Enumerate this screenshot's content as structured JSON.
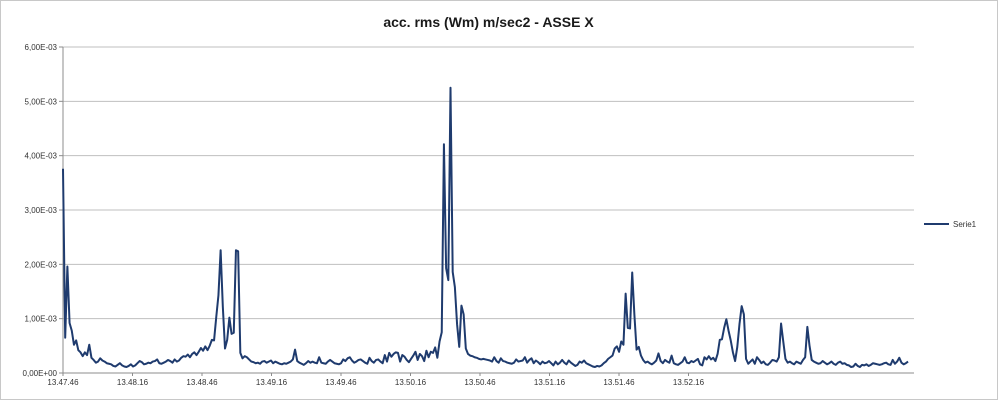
{
  "chart_data": {
    "type": "line",
    "title": "acc. rms (Wm) m/sec2 - ASSE X",
    "xlabel": "",
    "ylabel": "",
    "x_start": "13.47.46",
    "x_end": "13.53.05",
    "x_tick_labels": [
      "13.47.46",
      "13.48.16",
      "13.48.46",
      "13.49.16",
      "13.49.46",
      "13.50.16",
      "13.50.46",
      "13.51.16",
      "13.51.46",
      "13.52.16"
    ],
    "y_tick_labels": [
      "0,00E+00",
      "1,00E-03",
      "2,00E-03",
      "3,00E-03",
      "4,00E-03",
      "5,00E-03",
      "6,00E-03"
    ],
    "ylim": [
      0,
      0.006
    ],
    "grid": true,
    "legend": "right",
    "series": [
      {
        "name": "Serie1",
        "color": "#1f3b6e",
        "values": [
          0.00376,
          0.00065,
          0.00196,
          0.00092,
          0.00078,
          0.00052,
          0.0006,
          0.00042,
          0.00038,
          0.00031,
          0.00038,
          0.00033,
          0.00052,
          0.00028,
          0.00024,
          0.00019,
          0.00021,
          0.00027,
          0.00023,
          0.00021,
          0.00018,
          0.00017,
          0.00016,
          0.00013,
          0.00012,
          0.00015,
          0.00018,
          0.00014,
          0.00012,
          0.00011,
          0.00013,
          0.00016,
          0.00012,
          0.00014,
          0.00018,
          0.00022,
          0.0002,
          0.00016,
          0.00017,
          0.00019,
          0.00018,
          0.00021,
          0.00022,
          0.00025,
          0.00018,
          0.00017,
          0.00019,
          0.00021,
          0.00024,
          0.00022,
          0.00019,
          0.00025,
          0.00021,
          0.00023,
          0.00028,
          0.00031,
          0.0003,
          0.00034,
          0.00029,
          0.00035,
          0.00038,
          0.00033,
          0.00039,
          0.00046,
          0.00041,
          0.00049,
          0.00042,
          0.0005,
          0.00061,
          0.0006,
          0.00103,
          0.00143,
          0.00226,
          0.00122,
          0.00045,
          0.00061,
          0.00102,
          0.00072,
          0.00074,
          0.00226,
          0.00224,
          0.00037,
          0.00027,
          0.00031,
          0.00029,
          0.00025,
          0.00021,
          0.0002,
          0.00018,
          0.00019,
          0.00017,
          0.00021,
          0.00022,
          0.00019,
          0.00021,
          0.00023,
          0.00018,
          0.00021,
          0.00019,
          0.00017,
          0.00016,
          0.00018,
          0.00017,
          0.00019,
          0.00021,
          0.00025,
          0.00043,
          0.00022,
          0.00019,
          0.00017,
          0.00015,
          0.00018,
          0.00022,
          0.00019,
          0.00021,
          0.00019,
          0.00018,
          0.00029,
          0.00019,
          0.00018,
          0.00017,
          0.00021,
          0.00024,
          0.00021,
          0.00018,
          0.00017,
          0.00016,
          0.00018,
          0.00025,
          0.00022,
          0.00027,
          0.00029,
          0.00023,
          0.00019,
          0.00021,
          0.00024,
          0.00025,
          0.00022,
          0.00019,
          0.00017,
          0.00028,
          0.00022,
          0.00019,
          0.00024,
          0.00025,
          0.00021,
          0.00018,
          0.00033,
          0.00021,
          0.00037,
          0.0003,
          0.00035,
          0.00038,
          0.00037,
          0.00021,
          0.00033,
          0.0003,
          0.00024,
          0.0002,
          0.00026,
          0.00032,
          0.00039,
          0.00024,
          0.00035,
          0.00031,
          0.00022,
          0.00041,
          0.00029,
          0.00039,
          0.00037,
          0.00047,
          0.00028,
          0.00058,
          0.00075,
          0.00421,
          0.00193,
          0.00171,
          0.00525,
          0.00186,
          0.00158,
          0.0009,
          0.00048,
          0.00124,
          0.00108,
          0.00045,
          0.00035,
          0.00032,
          0.00031,
          0.00029,
          0.00028,
          0.00026,
          0.00025,
          0.00026,
          0.00025,
          0.00024,
          0.00023,
          0.00021,
          0.00029,
          0.00022,
          0.00019,
          0.00027,
          0.00022,
          0.00021,
          0.00019,
          0.00018,
          0.00017,
          0.00019,
          0.00025,
          0.00021,
          0.00022,
          0.00023,
          0.00029,
          0.00019,
          0.00024,
          0.00027,
          0.00018,
          0.00023,
          0.0002,
          0.00016,
          0.00021,
          0.00018,
          0.00019,
          0.00022,
          0.00018,
          0.00014,
          0.00021,
          0.00016,
          0.00019,
          0.00024,
          0.00019,
          0.00016,
          0.00023,
          0.00019,
          0.00016,
          0.00013,
          0.00015,
          0.00021,
          0.00019,
          0.00023,
          0.00018,
          0.00016,
          0.00014,
          0.00012,
          0.00011,
          0.00013,
          0.00012,
          0.00014,
          0.00018,
          0.00021,
          0.00026,
          0.00029,
          0.00032,
          0.00045,
          0.00049,
          0.00039,
          0.00058,
          0.00052,
          0.00146,
          0.00083,
          0.00082,
          0.00185,
          0.00107,
          0.00043,
          0.00048,
          0.00032,
          0.00024,
          0.00019,
          0.00021,
          0.00018,
          0.00016,
          0.00019,
          0.00023,
          0.00036,
          0.00022,
          0.00018,
          0.00024,
          0.00021,
          0.00019,
          0.00032,
          0.00018,
          0.00016,
          0.00015,
          0.00018,
          0.00021,
          0.00029,
          0.00019,
          0.00018,
          0.00022,
          0.0002,
          0.00023,
          0.00026,
          0.00016,
          0.00014,
          0.00029,
          0.00025,
          0.00031,
          0.00025,
          0.00028,
          0.00022,
          0.00035,
          0.00061,
          0.00062,
          0.00083,
          0.00099,
          0.00078,
          0.0006,
          0.00038,
          0.00022,
          0.00048,
          0.0009,
          0.00123,
          0.00108,
          0.00026,
          0.00017,
          0.00021,
          0.00025,
          0.00017,
          0.00029,
          0.00024,
          0.00018,
          0.00021,
          0.00016,
          0.00015,
          0.00019,
          0.00024,
          0.00023,
          0.00021,
          0.00029,
          0.00091,
          0.00058,
          0.00026,
          0.00019,
          0.00021,
          0.00018,
          0.00016,
          0.00021,
          0.00019,
          0.00017,
          0.00024,
          0.00029,
          0.00085,
          0.0005,
          0.00024,
          0.00021,
          0.00019,
          0.00017,
          0.00018,
          0.00022,
          0.00019,
          0.00016,
          0.00018,
          0.00021,
          0.00017,
          0.00015,
          0.00019,
          0.00021,
          0.00017,
          0.00018,
          0.00015,
          0.00014,
          0.00011,
          0.00012,
          0.00017,
          0.00013,
          0.00011,
          0.00015,
          0.00014,
          0.00016,
          0.00013,
          0.00015,
          0.00018,
          0.00017,
          0.00016,
          0.00015,
          0.00016,
          0.00018,
          0.00019,
          0.00016,
          0.00015,
          0.00024,
          0.00017,
          0.00021,
          0.00028,
          0.00019,
          0.00016,
          0.00018,
          0.00021
        ]
      }
    ]
  }
}
